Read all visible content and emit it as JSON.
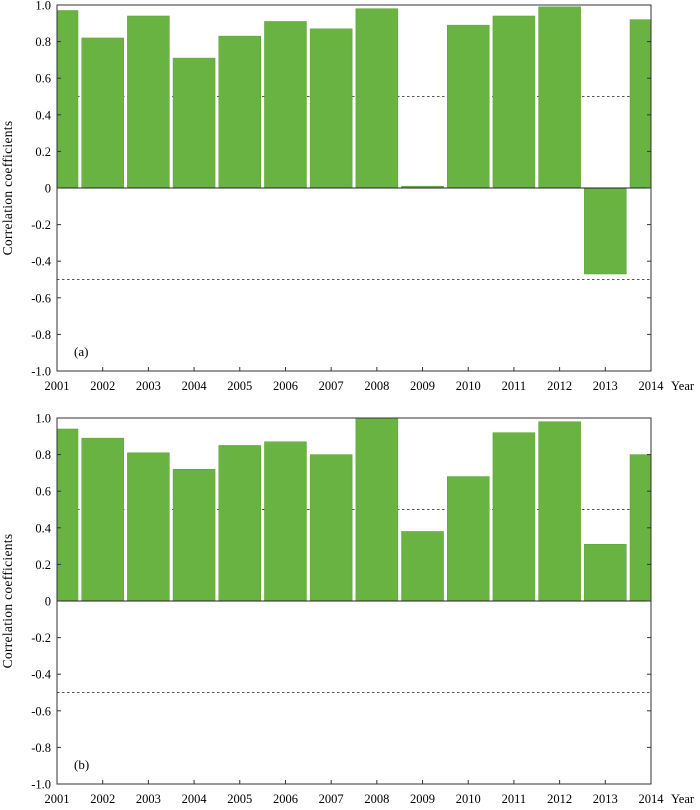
{
  "colors": {
    "bar": "#69b342",
    "bar_edge": "#5aa035",
    "axis": "#333333",
    "reference_line": "#555555"
  },
  "chart_data": [
    {
      "type": "bar",
      "panel_label": "(a)",
      "categories": [
        "2001",
        "2002",
        "2003",
        "2004",
        "2005",
        "2006",
        "2007",
        "2008",
        "2009",
        "2010",
        "2011",
        "2012",
        "2013",
        "2014"
      ],
      "values": [
        0.97,
        0.82,
        0.94,
        0.71,
        0.83,
        0.91,
        0.87,
        0.98,
        0.01,
        0.89,
        0.94,
        0.99,
        -0.47,
        0.92
      ],
      "xlabel": "Year",
      "ylabel": "Correlation  coefficients",
      "ylim": [
        -1.0,
        1.0
      ],
      "yticks": [
        "-1.0",
        "-0.8",
        "-0.6",
        "-0.4",
        "-0.2",
        "0",
        "0.2",
        "0.4",
        "0.6",
        "0.8",
        "1.0"
      ],
      "ytick_values": [
        -1.0,
        -0.8,
        -0.6,
        -0.4,
        -0.2,
        0,
        0.2,
        0.4,
        0.6,
        0.8,
        1.0
      ],
      "reference_lines": [
        0.5,
        -0.5
      ],
      "grid": false,
      "legend": "none"
    },
    {
      "type": "bar",
      "panel_label": "(b)",
      "categories": [
        "2001",
        "2002",
        "2003",
        "2004",
        "2005",
        "2006",
        "2007",
        "2008",
        "2009",
        "2010",
        "2011",
        "2012",
        "2013",
        "2014"
      ],
      "values": [
        0.94,
        0.89,
        0.81,
        0.72,
        0.85,
        0.87,
        0.8,
        1.0,
        0.38,
        0.68,
        0.92,
        0.98,
        0.31,
        0.8
      ],
      "xlabel": "Year",
      "ylabel": "Correlation  coefficients",
      "ylim": [
        -1.0,
        1.0
      ],
      "yticks": [
        "-1.0",
        "-0.8",
        "-0.6",
        "-0.4",
        "-0.2",
        "0",
        "0.2",
        "0.4",
        "0.6",
        "0.8",
        "1.0"
      ],
      "ytick_values": [
        -1.0,
        -0.8,
        -0.6,
        -0.4,
        -0.2,
        0,
        0.2,
        0.4,
        0.6,
        0.8,
        1.0
      ],
      "reference_lines": [
        0.5,
        -0.5
      ],
      "grid": false,
      "legend": "none"
    }
  ]
}
